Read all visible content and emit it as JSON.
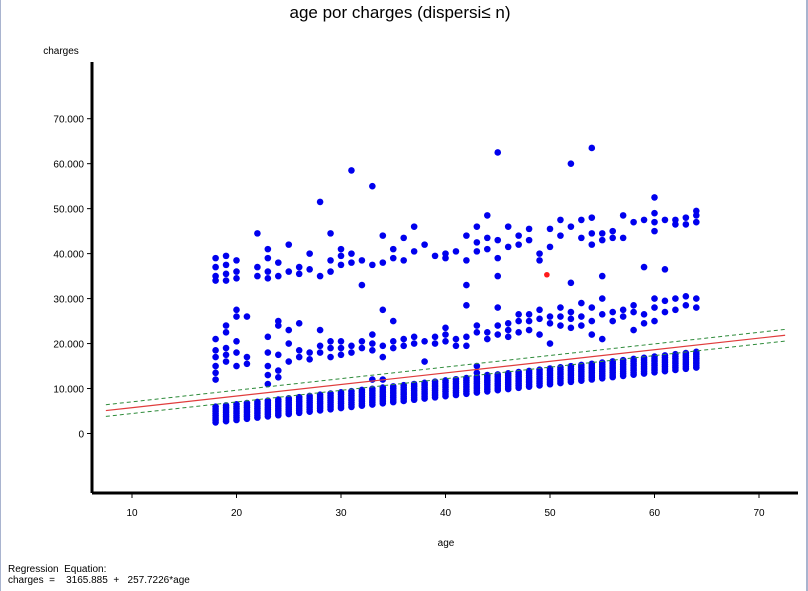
{
  "chart_data": {
    "type": "scatter",
    "title": "age  por  charges  (dispersi≤ n)",
    "xlabel": "age",
    "ylabel": "charges",
    "xlim": [
      5,
      75
    ],
    "ylim": [
      -13000,
      80000
    ],
    "x_ticks": [
      10,
      20,
      30,
      40,
      50,
      60,
      70
    ],
    "y_ticks": [
      0,
      10000,
      20000,
      30000,
      40000,
      50000,
      60000,
      70000
    ],
    "x_tick_labels": [
      "10",
      "20",
      "30",
      "40",
      "50",
      "60",
      "70"
    ],
    "y_tick_labels": [
      "0",
      "10.000",
      "20.000",
      "30.000",
      "40.000",
      "50.000",
      "60.000",
      "70.000"
    ],
    "grid": false,
    "ages": [
      18,
      19,
      20,
      21,
      22,
      23,
      24,
      25,
      26,
      27,
      28,
      29,
      30,
      31,
      32,
      33,
      34,
      35,
      36,
      37,
      38,
      39,
      40,
      41,
      42,
      43,
      44,
      45,
      46,
      47,
      48,
      49,
      50,
      51,
      52,
      53,
      54,
      55,
      56,
      57,
      58,
      59,
      60,
      61,
      62,
      63,
      64
    ],
    "base_band": {
      "intercept": -2300,
      "slope": 265,
      "spread": 3500
    },
    "mid_points": [
      [
        18,
        12000
      ],
      [
        18,
        13500
      ],
      [
        18,
        15000
      ],
      [
        18,
        17000
      ],
      [
        18,
        18500
      ],
      [
        18,
        21000
      ],
      [
        19,
        16000
      ],
      [
        19,
        17500
      ],
      [
        19,
        19000
      ],
      [
        19,
        22500
      ],
      [
        19,
        24000
      ],
      [
        20,
        15000
      ],
      [
        20,
        18000
      ],
      [
        20,
        20500
      ],
      [
        20,
        26000
      ],
      [
        20,
        27500
      ],
      [
        21,
        15500
      ],
      [
        21,
        17000
      ],
      [
        21,
        26000
      ],
      [
        23,
        11000
      ],
      [
        23,
        13000
      ],
      [
        23,
        15000
      ],
      [
        23,
        18000
      ],
      [
        23,
        21500
      ],
      [
        24,
        12500
      ],
      [
        24,
        14000
      ],
      [
        24,
        17500
      ],
      [
        24,
        24000
      ],
      [
        24,
        25000
      ],
      [
        25,
        16000
      ],
      [
        25,
        20000
      ],
      [
        25,
        23000
      ],
      [
        26,
        17000
      ],
      [
        26,
        18500
      ],
      [
        26,
        24500
      ],
      [
        27,
        16500
      ],
      [
        27,
        18000
      ],
      [
        28,
        18000
      ],
      [
        28,
        19500
      ],
      [
        28,
        23000
      ],
      [
        29,
        17000
      ],
      [
        29,
        19000
      ],
      [
        29,
        20500
      ],
      [
        30,
        17500
      ],
      [
        30,
        19000
      ],
      [
        30,
        20500
      ],
      [
        31,
        18000
      ],
      [
        31,
        19500
      ],
      [
        32,
        19000
      ],
      [
        32,
        20500
      ],
      [
        33,
        12000
      ],
      [
        33,
        18500
      ],
      [
        33,
        20000
      ],
      [
        33,
        22000
      ],
      [
        34,
        12000
      ],
      [
        34,
        17000
      ],
      [
        34,
        19500
      ],
      [
        34,
        27500
      ],
      [
        35,
        19000
      ],
      [
        35,
        20500
      ],
      [
        35,
        25000
      ],
      [
        36,
        19500
      ],
      [
        36,
        21000
      ],
      [
        37,
        20000
      ],
      [
        37,
        21500
      ],
      [
        38,
        16000
      ],
      [
        38,
        20500
      ],
      [
        39,
        20000
      ],
      [
        39,
        21500
      ],
      [
        40,
        20500
      ],
      [
        40,
        22000
      ],
      [
        40,
        23500
      ],
      [
        41,
        19500
      ],
      [
        41,
        21000
      ],
      [
        42,
        19500
      ],
      [
        42,
        21500
      ],
      [
        42,
        28500
      ],
      [
        43,
        13500
      ],
      [
        43,
        15000
      ],
      [
        43,
        22500
      ],
      [
        43,
        24000
      ],
      [
        44,
        13000
      ],
      [
        44,
        21000
      ],
      [
        44,
        22500
      ],
      [
        45,
        22000
      ],
      [
        45,
        24000
      ],
      [
        45,
        28000
      ],
      [
        46,
        21500
      ],
      [
        46,
        23000
      ],
      [
        46,
        24500
      ],
      [
        47,
        22500
      ],
      [
        47,
        25000
      ],
      [
        47,
        26500
      ],
      [
        48,
        23000
      ],
      [
        48,
        25000
      ],
      [
        48,
        26500
      ],
      [
        49,
        22000
      ],
      [
        49,
        25500
      ],
      [
        49,
        27500
      ],
      [
        50,
        20000
      ],
      [
        50,
        24500
      ],
      [
        50,
        26000
      ],
      [
        51,
        24000
      ],
      [
        51,
        26000
      ],
      [
        51,
        28000
      ],
      [
        52,
        23500
      ],
      [
        52,
        25500
      ],
      [
        52,
        27000
      ],
      [
        53,
        24000
      ],
      [
        53,
        26000
      ],
      [
        53,
        29000
      ],
      [
        54,
        22000
      ],
      [
        54,
        25000
      ],
      [
        54,
        28000
      ],
      [
        55,
        21000
      ],
      [
        55,
        26500
      ],
      [
        55,
        30000
      ],
      [
        56,
        25000
      ],
      [
        56,
        27000
      ],
      [
        57,
        26000
      ],
      [
        57,
        27500
      ],
      [
        58,
        23000
      ],
      [
        58,
        27000
      ],
      [
        58,
        28500
      ],
      [
        59,
        24500
      ],
      [
        59,
        26500
      ],
      [
        60,
        25000
      ],
      [
        60,
        28000
      ],
      [
        60,
        30000
      ],
      [
        61,
        27000
      ],
      [
        61,
        29500
      ],
      [
        62,
        27500
      ],
      [
        62,
        30000
      ],
      [
        63,
        28500
      ],
      [
        63,
        30500
      ],
      [
        64,
        28000
      ],
      [
        64,
        30000
      ]
    ],
    "high_points": [
      [
        18,
        34000
      ],
      [
        18,
        35000
      ],
      [
        18,
        37000
      ],
      [
        18,
        39000
      ],
      [
        19,
        34000
      ],
      [
        19,
        35500
      ],
      [
        19,
        37500
      ],
      [
        19,
        39500
      ],
      [
        20,
        34500
      ],
      [
        20,
        36000
      ],
      [
        20,
        38500
      ],
      [
        22,
        35000
      ],
      [
        22,
        37000
      ],
      [
        22,
        44500
      ],
      [
        23,
        34500
      ],
      [
        23,
        36000
      ],
      [
        23,
        39000
      ],
      [
        23,
        41000
      ],
      [
        24,
        35000
      ],
      [
        24,
        38000
      ],
      [
        25,
        36000
      ],
      [
        25,
        42000
      ],
      [
        26,
        35500
      ],
      [
        26,
        37000
      ],
      [
        27,
        36500
      ],
      [
        27,
        40000
      ],
      [
        28,
        35000
      ],
      [
        28,
        51500
      ],
      [
        29,
        36000
      ],
      [
        29,
        38500
      ],
      [
        29,
        44500
      ],
      [
        30,
        37500
      ],
      [
        30,
        39500
      ],
      [
        30,
        41000
      ],
      [
        31,
        38000
      ],
      [
        31,
        40000
      ],
      [
        31,
        58500
      ],
      [
        32,
        33000
      ],
      [
        32,
        38500
      ],
      [
        33,
        37500
      ],
      [
        33,
        55000
      ],
      [
        34,
        38000
      ],
      [
        34,
        44000
      ],
      [
        35,
        39000
      ],
      [
        35,
        41000
      ],
      [
        36,
        38500
      ],
      [
        36,
        43500
      ],
      [
        37,
        40500
      ],
      [
        37,
        46000
      ],
      [
        38,
        42000
      ],
      [
        39,
        39500
      ],
      [
        40,
        40000
      ],
      [
        40,
        39000
      ],
      [
        41,
        40500
      ],
      [
        42,
        33000
      ],
      [
        42,
        38500
      ],
      [
        42,
        44000
      ],
      [
        43,
        40500
      ],
      [
        43,
        42500
      ],
      [
        43,
        46000
      ],
      [
        44,
        41000
      ],
      [
        44,
        43500
      ],
      [
        44,
        48500
      ],
      [
        45,
        35000
      ],
      [
        45,
        39000
      ],
      [
        45,
        43000
      ],
      [
        45,
        62500
      ],
      [
        46,
        41500
      ],
      [
        46,
        46000
      ],
      [
        47,
        42000
      ],
      [
        47,
        44000
      ],
      [
        48,
        43000
      ],
      [
        48,
        45500
      ],
      [
        49,
        38500
      ],
      [
        49,
        40000
      ],
      [
        50,
        41500
      ],
      [
        50,
        45500
      ],
      [
        51,
        44000
      ],
      [
        51,
        47500
      ],
      [
        52,
        33500
      ],
      [
        52,
        46000
      ],
      [
        52,
        60000
      ],
      [
        53,
        43500
      ],
      [
        53,
        47500
      ],
      [
        54,
        42000
      ],
      [
        54,
        44500
      ],
      [
        54,
        48000
      ],
      [
        54,
        63500
      ],
      [
        55,
        35000
      ],
      [
        55,
        43000
      ],
      [
        55,
        44500
      ],
      [
        56,
        43500
      ],
      [
        56,
        45000
      ],
      [
        57,
        43500
      ],
      [
        57,
        48500
      ],
      [
        58,
        47000
      ],
      [
        59,
        37000
      ],
      [
        59,
        47500
      ],
      [
        60,
        45000
      ],
      [
        60,
        47000
      ],
      [
        60,
        49000
      ],
      [
        60,
        52500
      ],
      [
        61,
        36500
      ],
      [
        61,
        47500
      ],
      [
        62,
        46500
      ],
      [
        62,
        47500
      ],
      [
        63,
        46500
      ],
      [
        63,
        48000
      ],
      [
        64,
        47000
      ],
      [
        64,
        48500
      ],
      [
        64,
        49500
      ]
    ],
    "highlight_point": [
      49.7,
      35300
    ],
    "regression": {
      "intercept": 3165.885,
      "slope": 257.7226,
      "x_range": [
        7.5,
        72.5
      ],
      "band_offset": 1300
    },
    "colors": {
      "points": "#0000ee",
      "regression": "#e03c3c",
      "confidence": "#2e8b3a",
      "highlight": "#ff1a1a",
      "axis": "#000000"
    }
  },
  "equation": {
    "label": "Regression  Equation:",
    "text": "charges  =    3165.885  +   257.7226*age"
  }
}
